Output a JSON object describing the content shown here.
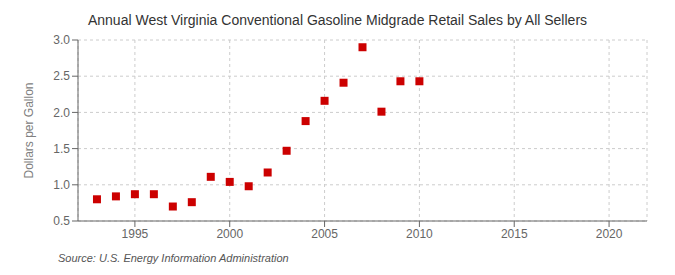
{
  "chart_data": {
    "type": "scatter",
    "title": "Annual West Virginia Conventional Gasoline Midgrade Retail Sales by All Sellers",
    "ylabel": "Dollars per Gallon",
    "annotations": [
      "Source: U.S. Energy Information Administration"
    ],
    "x": [
      1993,
      1994,
      1995,
      1996,
      1997,
      1998,
      1999,
      2000,
      2001,
      2002,
      2003,
      2004,
      2005,
      2006,
      2007,
      2008,
      2009,
      2010
    ],
    "values": [
      0.8,
      0.84,
      0.87,
      0.87,
      0.7,
      0.76,
      1.11,
      1.04,
      0.98,
      1.17,
      1.47,
      1.88,
      2.16,
      2.41,
      2.9,
      2.01,
      2.43,
      2.43
    ],
    "color": "#cc0000",
    "marker": "square",
    "xlim": [
      1992,
      2022
    ],
    "xticks": [
      1995,
      2000,
      2005,
      2010,
      2015,
      2020
    ],
    "ylim": [
      0.5,
      3.0
    ],
    "yticks": [
      0.5,
      {
        "value": 1,
        "label": "1.0"
      },
      1.5,
      {
        "value": 2,
        "label": "2.0"
      },
      2.5,
      {
        "value": 3,
        "label": "3.0"
      }
    ],
    "grid": true
  }
}
